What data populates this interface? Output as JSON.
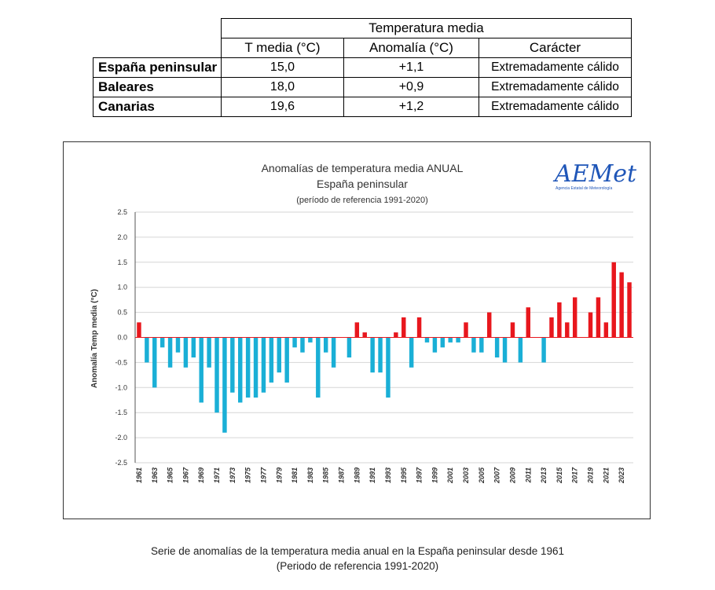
{
  "table": {
    "group_header": "Temperatura media",
    "columns": [
      "T media (°C)",
      "Anomalía (°C)",
      "Carácter"
    ],
    "rows": [
      {
        "region": "España peninsular",
        "t_media": "15,0",
        "anomalia": "+1,1",
        "caracter": "Extremadamente cálido"
      },
      {
        "region": "Baleares",
        "t_media": "18,0",
        "anomalia": "+0,9",
        "caracter": "Extremadamente cálido"
      },
      {
        "region": "Canarias",
        "t_media": "19,6",
        "anomalia": "+1,2",
        "caracter": "Extremadamente cálido"
      }
    ]
  },
  "logo": {
    "text": "AEMet",
    "subtitle": "Agencia Estatal de Meteorología",
    "color": "#1f56b8"
  },
  "chart_data": {
    "type": "bar",
    "title": "Anomalías de temperatura media ANUAL",
    "subtitle": "España peninsular",
    "reference": "(período de referencia 1991-2020)",
    "xlabel": "",
    "ylabel": "Anomalía Temp media (°C)",
    "ylim": [
      -2.5,
      2.5
    ],
    "yticks": [
      "2.5",
      "2.0",
      "1.5",
      "1.0",
      "0.5",
      "0.0",
      "-0.5",
      "-1.0",
      "-1.5",
      "-2.0",
      "-2.5"
    ],
    "grid": true,
    "colors": {
      "positive": "#e8171d",
      "negative": "#1aafd6"
    },
    "categories": [
      1961,
      1962,
      1963,
      1964,
      1965,
      1966,
      1967,
      1968,
      1969,
      1970,
      1971,
      1972,
      1973,
      1974,
      1975,
      1976,
      1977,
      1978,
      1979,
      1980,
      1981,
      1982,
      1983,
      1984,
      1985,
      1986,
      1987,
      1988,
      1989,
      1990,
      1991,
      1992,
      1993,
      1994,
      1995,
      1996,
      1997,
      1998,
      1999,
      2000,
      2001,
      2002,
      2003,
      2004,
      2005,
      2006,
      2007,
      2008,
      2009,
      2010,
      2011,
      2012,
      2013,
      2014,
      2015,
      2016,
      2017,
      2018,
      2019,
      2020,
      2021,
      2022,
      2023,
      2024
    ],
    "values": [
      0.3,
      -0.5,
      -1.0,
      -0.2,
      -0.6,
      -0.3,
      -0.6,
      -0.4,
      -1.3,
      -0.6,
      -1.5,
      -1.9,
      -1.1,
      -1.3,
      -1.2,
      -1.2,
      -1.1,
      -0.9,
      -0.7,
      -0.9,
      -0.2,
      -0.3,
      -0.1,
      -1.2,
      -0.3,
      -0.6,
      0.0,
      -0.4,
      0.3,
      0.1,
      -0.7,
      -0.7,
      -1.2,
      0.1,
      0.4,
      -0.6,
      0.4,
      -0.1,
      -0.3,
      -0.2,
      -0.1,
      -0.1,
      0.3,
      -0.3,
      -0.3,
      0.5,
      -0.4,
      -0.5,
      0.3,
      -0.5,
      0.6,
      0.0,
      -0.5,
      0.4,
      0.7,
      0.3,
      0.8,
      0.0,
      0.5,
      0.8,
      0.3,
      1.5,
      1.3,
      1.1
    ],
    "xtick_labels": [
      "1961",
      "1963",
      "1965",
      "1967",
      "1969",
      "1971",
      "1973",
      "1975",
      "1977",
      "1979",
      "1981",
      "1983",
      "1985",
      "1987",
      "1989",
      "1991",
      "1993",
      "1995",
      "1997",
      "1999",
      "2001",
      "2003",
      "2005",
      "2007",
      "2009",
      "2011",
      "2013",
      "2015",
      "2017",
      "2019",
      "2021",
      "2023"
    ]
  },
  "caption": {
    "line1": "Serie de anomalías de la temperatura media anual en la España peninsular desde 1961",
    "line2": "(Periodo de referencia 1991-2020)"
  }
}
